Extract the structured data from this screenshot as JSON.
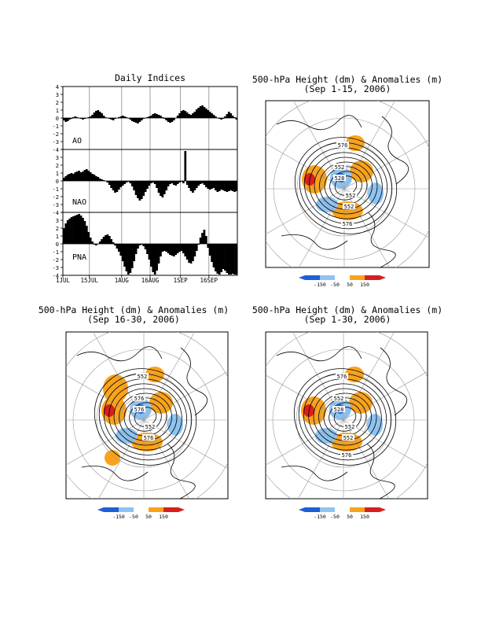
{
  "indices": {
    "title": "Daily Indices",
    "panels": [
      {
        "label": "AO",
        "values": [
          -0.3,
          -0.5,
          -0.4,
          -0.2,
          -0.1,
          0.1,
          0.2,
          0.1,
          0.0,
          -0.1,
          -0.2,
          -0.1,
          0.0,
          0.1,
          0.2,
          0.4,
          0.7,
          0.9,
          1.0,
          0.8,
          0.6,
          0.3,
          0.1,
          0.0,
          -0.1,
          -0.2,
          -0.3,
          -0.1,
          0.0,
          0.1,
          0.2,
          0.3,
          0.2,
          0.1,
          0.0,
          -0.2,
          -0.4,
          -0.5,
          -0.6,
          -0.7,
          -0.5,
          -0.3,
          -0.1,
          0.0,
          0.1,
          0.2,
          0.3,
          0.5,
          0.6,
          0.5,
          0.4,
          0.3,
          0.1,
          -0.1,
          -0.3,
          -0.5,
          -0.6,
          -0.5,
          -0.3,
          0.0,
          0.3,
          0.6,
          0.9,
          1.0,
          0.9,
          0.7,
          0.5,
          0.4,
          0.6,
          0.8,
          1.1,
          1.3,
          1.5,
          1.6,
          1.4,
          1.2,
          1.0,
          0.8,
          0.6,
          0.4,
          0.2,
          0.0,
          -0.1,
          -0.2,
          -0.1,
          0.2,
          0.5,
          0.8,
          0.6,
          0.3,
          0.1,
          -0.2
        ]
      },
      {
        "label": "NAO",
        "values": [
          0.4,
          0.6,
          0.8,
          0.9,
          1.0,
          0.9,
          1.1,
          1.2,
          1.3,
          1.1,
          1.2,
          1.4,
          1.5,
          1.3,
          1.1,
          0.9,
          0.8,
          0.6,
          0.5,
          0.3,
          0.2,
          0.1,
          0.0,
          -0.2,
          -0.5,
          -0.9,
          -1.2,
          -1.5,
          -1.4,
          -1.1,
          -0.8,
          -0.6,
          -0.4,
          -0.2,
          -0.1,
          -0.3,
          -0.7,
          -1.2,
          -1.8,
          -2.2,
          -2.5,
          -2.3,
          -1.9,
          -1.4,
          -1.0,
          -0.6,
          -0.3,
          -0.2,
          -0.4,
          -0.9,
          -1.5,
          -1.9,
          -2.1,
          -1.7,
          -1.2,
          -0.7,
          -0.4,
          -0.3,
          -0.5,
          -0.6,
          -0.4,
          -0.2,
          -0.1,
          -0.3,
          3.8,
          -0.5,
          -0.9,
          -1.3,
          -1.5,
          -1.2,
          -0.9,
          -0.6,
          -0.4,
          -0.3,
          -0.5,
          -0.8,
          -1.0,
          -1.1,
          -1.0,
          -0.9,
          -1.2,
          -1.4,
          -1.3,
          -1.1,
          -1.2,
          -1.3,
          -1.4,
          -1.3,
          -1.2,
          -1.3,
          -1.4,
          -1.3
        ]
      },
      {
        "label": "PNA",
        "values": [
          2.0,
          2.6,
          3.0,
          3.2,
          3.4,
          3.5,
          3.6,
          3.7,
          3.8,
          3.6,
          3.3,
          2.9,
          2.3,
          1.5,
          0.8,
          0.3,
          -0.1,
          -0.2,
          0.0,
          0.3,
          0.6,
          0.9,
          1.1,
          1.2,
          1.0,
          0.6,
          0.2,
          -0.2,
          -0.6,
          -1.0,
          -1.5,
          -2.2,
          -2.9,
          -3.5,
          -3.9,
          -3.7,
          -3.1,
          -2.2,
          -1.3,
          -0.6,
          -0.2,
          -0.1,
          -0.3,
          -0.7,
          -1.3,
          -2.0,
          -2.9,
          -3.6,
          -3.9,
          -3.4,
          -2.5,
          -1.6,
          -1.0,
          -0.9,
          -1.0,
          -1.2,
          -1.4,
          -1.5,
          -1.6,
          -1.4,
          -1.2,
          -1.0,
          -0.9,
          -1.2,
          -1.6,
          -2.0,
          -2.4,
          -2.5,
          -2.2,
          -1.6,
          -0.9,
          -0.1,
          0.8,
          1.4,
          1.8,
          1.0,
          -0.5,
          -1.5,
          -2.3,
          -3.0,
          -3.5,
          -3.8,
          -3.9,
          -3.6,
          -3.2,
          -3.4,
          -3.7,
          -3.9,
          -3.9,
          -3.8,
          -3.9,
          -3.9
        ]
      }
    ],
    "yticks": [
      "4",
      "3",
      "2",
      "1",
      "0",
      "-1",
      "-2",
      "-3",
      "-4"
    ],
    "xticks": [
      "1JUL",
      "15JUL",
      "1AUG",
      "16AUG",
      "1SEP",
      "16SEP"
    ]
  },
  "maps": [
    {
      "title1": "500-hPa Height (dm) & Anomalies (m)",
      "title2": "(Sep 1-15, 2006)",
      "labels": [
        "576",
        "552",
        "528",
        "552",
        "552",
        "576"
      ]
    },
    {
      "title1": "500-hPa Height (dm) & Anomalies (m)",
      "title2": "(Sep 16-30, 2006)",
      "labels": [
        "552",
        "576",
        "576",
        "552",
        "576"
      ]
    },
    {
      "title1": "500-hPa Height (dm) & Anomalies (m)",
      "title2": "(Sep 1-30, 2006)",
      "labels": [
        "576",
        "552",
        "528",
        "552",
        "552",
        "576"
      ]
    }
  ],
  "colorbar": {
    "labels": [
      "-150",
      "-50",
      "50",
      "150"
    ],
    "colors": [
      "#1f5fd6",
      "#8ec4f2",
      "#ffffff",
      "#f9a31b",
      "#d81f1f"
    ]
  },
  "chart_data": [
    {
      "type": "bar",
      "title": "Daily Indices",
      "series": [
        {
          "name": "AO"
        },
        {
          "name": "NAO"
        },
        {
          "name": "PNA"
        }
      ],
      "ylim": [
        -4,
        4
      ],
      "x_range": [
        "1JUL",
        "30SEP"
      ],
      "xticks": [
        "1JUL",
        "15JUL",
        "1AUG",
        "16AUG",
        "1SEP",
        "16SEP"
      ]
    },
    {
      "type": "heatmap",
      "title": "500-hPa Height (dm) & Anomalies (m) (Sep 1-15, 2006)",
      "contour_labels": [
        "576",
        "552",
        "528",
        "552",
        "552",
        "576"
      ],
      "anomaly_scale": [
        "-150",
        "-50",
        "50",
        "150"
      ]
    },
    {
      "type": "heatmap",
      "title": "500-hPa Height (dm) & Anomalies (m) (Sep 16-30, 2006)",
      "contour_labels": [
        "552",
        "576",
        "576",
        "552",
        "576"
      ],
      "anomaly_scale": [
        "-150",
        "-50",
        "50",
        "150"
      ]
    },
    {
      "type": "heatmap",
      "title": "500-hPa Height (dm) & Anomalies (m) (Sep 1-30, 2006)",
      "contour_labels": [
        "576",
        "552",
        "528",
        "552",
        "552",
        "576"
      ],
      "anomaly_scale": [
        "-150",
        "-50",
        "50",
        "150"
      ]
    }
  ]
}
